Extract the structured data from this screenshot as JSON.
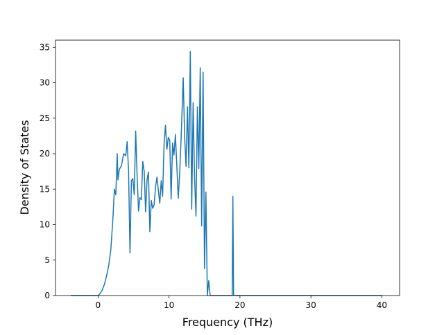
{
  "chart_data": {
    "type": "line",
    "title": "",
    "xlabel": "Frequency (THz)",
    "ylabel": "Density of States",
    "xlim": [
      -6.0,
      42.5
    ],
    "ylim": [
      0,
      36
    ],
    "xticks": [
      0,
      10,
      20,
      30,
      40
    ],
    "yticks": [
      0,
      5,
      10,
      15,
      20,
      25,
      30,
      35
    ],
    "grid": false,
    "legend": "none",
    "colors": {
      "series": "#1f77b4",
      "axes": "#000000",
      "background": "#ffffff"
    },
    "series": [
      {
        "x": [
          -3.8,
          0.0,
          0.3,
          0.6,
          0.9,
          1.2,
          1.5,
          1.8,
          2.1,
          2.3,
          2.5,
          2.7,
          2.8,
          3.0,
          3.3,
          3.6,
          3.9,
          4.1,
          4.3,
          4.5,
          4.6,
          4.7,
          4.9,
          5.1,
          5.3,
          5.5,
          5.7,
          5.9,
          6.1,
          6.3,
          6.5,
          6.7,
          6.9,
          7.1,
          7.3,
          7.5,
          7.7,
          7.9,
          8.1,
          8.3,
          8.5,
          8.7,
          8.9,
          9.1,
          9.3,
          9.5,
          9.7,
          9.9,
          10.1,
          10.3,
          10.5,
          10.7,
          10.9,
          11.1,
          11.3,
          11.5,
          11.7,
          12.0,
          12.2,
          12.4,
          12.6,
          12.8,
          13.0,
          13.2,
          13.4,
          13.6,
          13.8,
          14.0,
          14.2,
          14.4,
          14.6,
          14.8,
          15.0,
          15.2,
          15.4,
          15.6,
          15.8,
          16.0,
          16.1,
          16.2,
          16.4,
          16.6,
          16.8,
          17.0,
          18.9,
          19.0,
          19.1,
          19.3,
          19.5,
          40.0
        ],
        "y": [
          0,
          0,
          0.3,
          0.8,
          1.6,
          2.8,
          4.2,
          6.5,
          11.0,
          15.0,
          14.2,
          20.0,
          16.3,
          17.8,
          18.3,
          20.0,
          19.7,
          21.7,
          17.5,
          6.0,
          11.0,
          16.2,
          16.5,
          14.2,
          23.2,
          17.0,
          11.9,
          13.8,
          13.5,
          18.9,
          17.5,
          11.8,
          16.3,
          17.4,
          9.0,
          13.4,
          12.3,
          12.8,
          15.3,
          16.7,
          14.8,
          13.0,
          16.2,
          14.0,
          21.3,
          24.0,
          20.6,
          22.3,
          21.9,
          13.6,
          21.5,
          19.8,
          22.7,
          18.3,
          13.7,
          17.2,
          22.0,
          30.7,
          22.4,
          18.2,
          26.6,
          18.0,
          34.4,
          12.2,
          27.2,
          16.7,
          11.2,
          26.6,
          17.9,
          32.1,
          9.8,
          31.5,
          3.8,
          14.6,
          0.0,
          2.1,
          0.0,
          0.0,
          0.0,
          0.0,
          0.0,
          0.0,
          0.0,
          0.0,
          0.0,
          14.0,
          0.0,
          0.0,
          0.0,
          0.0
        ]
      }
    ]
  }
}
